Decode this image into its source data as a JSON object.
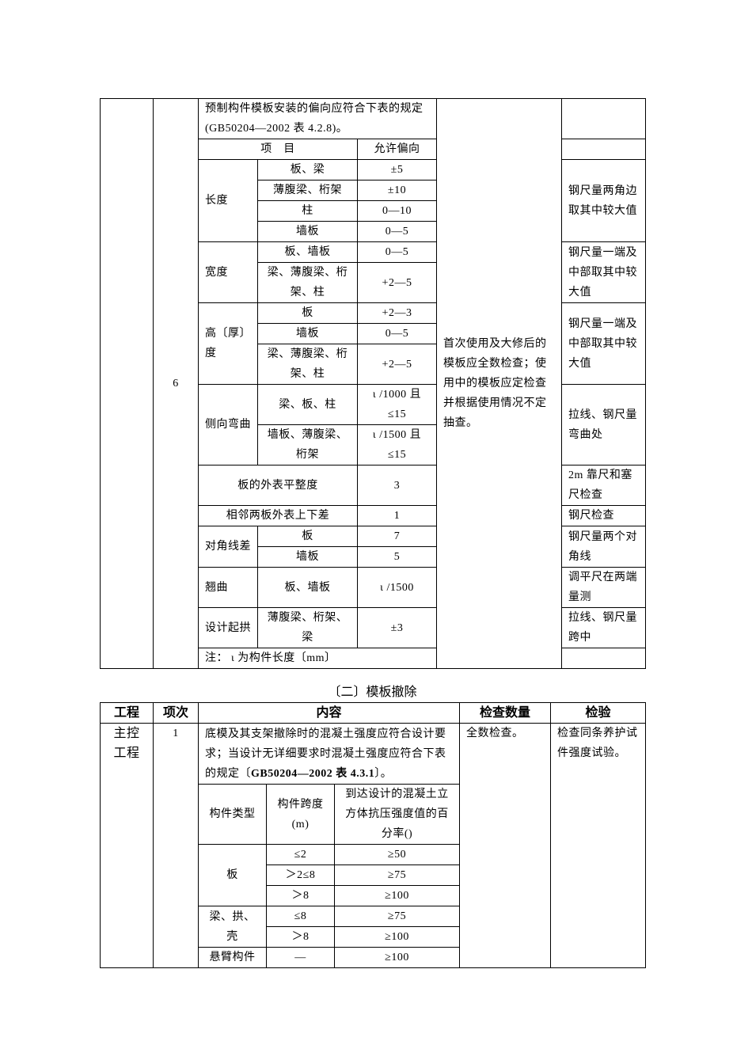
{
  "table1": {
    "index": "6",
    "intro": "预制构件模板安装的偏向应符合下表的规定(GB50204—2002 表 4.2.8)。",
    "header": [
      "项　目",
      "允许偏向"
    ],
    "check": "首次使用及大修后的模板应全数检查；使用中的模板应定检查并根据使用情况不定抽查。",
    "groups": [
      {
        "name": "长度",
        "items": [
          [
            "板、梁",
            "±5"
          ],
          [
            "薄腹梁、桁架",
            "±10"
          ],
          [
            "柱",
            "0—10"
          ],
          [
            "墙板",
            "0—5"
          ]
        ],
        "method": "钢尺量两角边取其中较大值"
      },
      {
        "name": "宽度",
        "items": [
          [
            "板、墙板",
            "0—5"
          ],
          [
            "梁、薄腹梁、桁架、柱",
            "+2—5"
          ]
        ],
        "method": "钢尺量一端及中部取其中较大值"
      },
      {
        "name": "高〔厚〕度",
        "items": [
          [
            "板",
            "+2—3"
          ],
          [
            "墙板",
            "0—5"
          ],
          [
            "梁、薄腹梁、桁架、柱",
            "+2—5"
          ]
        ],
        "method": "钢尺量一端及中部取其中较大值"
      },
      {
        "name": "侧向弯曲",
        "items": [
          [
            "梁、板、柱",
            "ι /1000 且≤15"
          ],
          [
            "墙板、薄腹梁、桁架",
            "ι /1500 且≤15"
          ]
        ],
        "method": "拉线、钢尺量弯曲处"
      },
      {
        "name": "板的外表平整度",
        "value": "3",
        "method": "2m 靠尺和塞尺检查"
      },
      {
        "name": "相邻两板外表上下差",
        "value": "1",
        "method": "钢尺检查"
      },
      {
        "name": "对角线差",
        "items": [
          [
            "板",
            "7"
          ],
          [
            "墙板",
            "5"
          ]
        ],
        "method": "钢尺量两个对角线"
      },
      {
        "name": "翘曲",
        "items": [
          [
            "板、墙板",
            "ι /1500"
          ]
        ],
        "method": "调平尺在两端量测"
      },
      {
        "name": "设计起拱",
        "items": [
          [
            "薄腹梁、桁架、梁",
            "±3"
          ]
        ],
        "method": "拉线、钢尺量跨中"
      }
    ],
    "note": "注：  ι 为构件长度〔mm〕"
  },
  "section_title": "〔二〕模板撤除",
  "table2": {
    "header": [
      "工程",
      "项次",
      "内容",
      "检查数量",
      "检验"
    ],
    "category": "主控工程",
    "index": "1",
    "intro_pre": "底模及其支架撤除时的混凝土强度应符合设计要求；当设计无详细要求时混凝土强度应符合下表的规定〔",
    "intro_bold": "GB50204—2002 表 4.3.1",
    "intro_post": "〕。",
    "count": "全数检查。",
    "method": "检查同条养护试件强度试验。",
    "inner_header": [
      "构件类型",
      "构件跨度(m)",
      "到达设计的混凝土立方体抗压强度值的百分率()"
    ],
    "groups": [
      {
        "name": "板",
        "rows": [
          [
            "≤2",
            "≥50"
          ],
          [
            "＞2≤8",
            "≥75"
          ],
          [
            "＞8",
            "≥100"
          ]
        ]
      },
      {
        "name": "梁、拱、壳",
        "rows": [
          [
            "≤8",
            "≥75"
          ],
          [
            "＞8",
            "≥100"
          ]
        ]
      },
      {
        "name": "悬臂构件",
        "rows": [
          [
            "—",
            "≥100"
          ]
        ]
      }
    ]
  }
}
